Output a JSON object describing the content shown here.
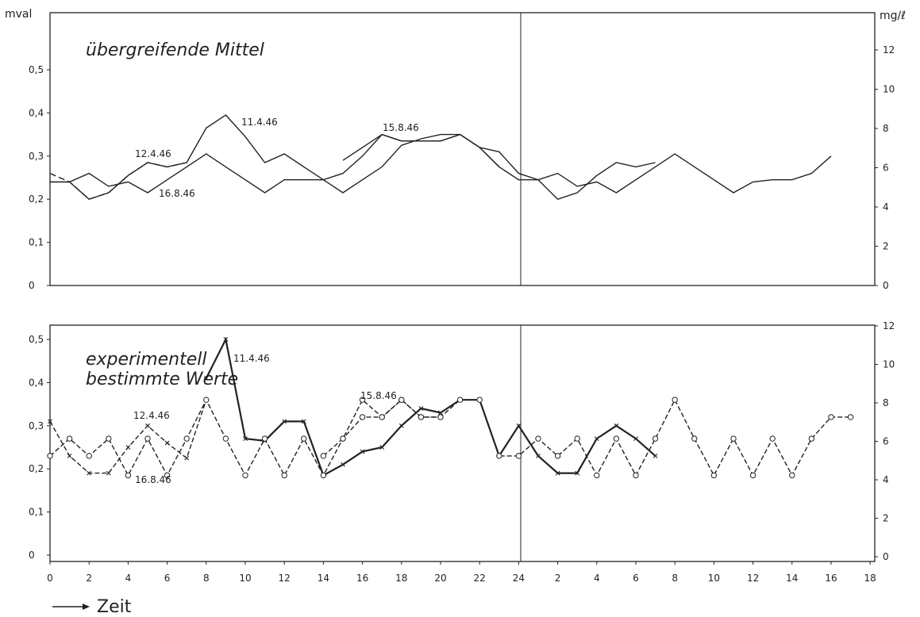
{
  "chart_data": [
    {
      "type": "line",
      "title": "übergreifende Mittel",
      "ylabel_left": "mval",
      "ylabel_right": "mg/ℓ",
      "ylim_left": [
        0,
        0.55
      ],
      "ylim_right": [
        0,
        13
      ],
      "left_ticks": [
        "0",
        "0,1",
        "0,2",
        "0,3",
        "0,4",
        "0,5"
      ],
      "right_ticks": [
        "0",
        "2",
        "4",
        "6",
        "8",
        "10",
        "12"
      ],
      "series": [
        {
          "name": "11.4.46",
          "x": [
            0,
            1,
            2,
            3,
            4,
            5,
            6,
            7,
            8,
            9,
            10,
            11,
            12,
            13,
            14,
            15,
            16,
            17,
            18,
            19,
            20,
            21,
            22,
            23,
            24,
            25,
            26,
            27,
            28,
            29,
            30,
            31
          ],
          "y": [
            0.24,
            0.24,
            0.2,
            0.215,
            0.255,
            0.285,
            0.275,
            0.285,
            0.365,
            0.395,
            0.345,
            0.285,
            0.305,
            0.275,
            0.245,
            0.215,
            0.245,
            0.275,
            0.325,
            0.34,
            0.35,
            0.35,
            0.32,
            0.31,
            0.26,
            0.245,
            0.2,
            0.215,
            0.255,
            0.285,
            0.275,
            0.285
          ]
        },
        {
          "name": "12.4.46",
          "x": [
            0,
            1,
            2,
            3,
            4,
            5,
            6,
            7
          ],
          "y": [
            0.26,
            0.24,
            0.2,
            0.215,
            0.255,
            0.285,
            0.275,
            0.285
          ]
        },
        {
          "name": "16.8.46",
          "x": [
            0,
            1,
            2,
            3,
            4,
            5,
            6,
            7,
            8,
            9,
            10,
            11,
            12,
            13,
            14,
            15,
            16,
            17,
            18,
            19,
            20,
            21,
            22,
            23,
            24,
            25,
            26,
            27,
            28,
            29,
            30,
            31,
            32,
            33,
            34,
            35,
            36,
            37,
            38,
            39,
            40
          ],
          "y": [
            0.24,
            0.24,
            0.26,
            0.23,
            0.24,
            0.215,
            0.245,
            0.275,
            0.305,
            0.275,
            0.245,
            0.215,
            0.245,
            0.245,
            0.245,
            0.26,
            0.3,
            0.35,
            0.335,
            0.335,
            0.335,
            0.35,
            0.32,
            0.275,
            0.245,
            0.245,
            0.26,
            0.23,
            0.24,
            0.215,
            0.245,
            0.275,
            0.305,
            0.275,
            0.245,
            0.215,
            0.24,
            0.245,
            0.245,
            0.26,
            0.3
          ]
        },
        {
          "name": "15.8.46",
          "x": [
            15,
            16,
            17,
            18,
            19,
            20,
            21,
            22,
            23
          ],
          "y": [
            0.29,
            0.32,
            0.35,
            0.335,
            0.335,
            0.335,
            0.35,
            0.32,
            0.275
          ]
        }
      ]
    },
    {
      "type": "line",
      "title": "experimentell bestimmte Werte",
      "ylabel_left": "",
      "ylabel_right": "",
      "ylim_left": [
        0,
        0.55
      ],
      "ylim_right": [
        0,
        12
      ],
      "left_ticks": [
        "0",
        "0,1",
        "0,2",
        "0,3",
        "0,4",
        "0,5"
      ],
      "right_ticks": [
        "0",
        "2",
        "4",
        "6",
        "8",
        "10",
        "12"
      ],
      "series": [
        {
          "name": "11.4.46",
          "marker": "x",
          "x": [
            8,
            9,
            10,
            11,
            12,
            13,
            14,
            15,
            16,
            17,
            18,
            19,
            20,
            21,
            22,
            23,
            24,
            25,
            26,
            27,
            28,
            29,
            30,
            31
          ],
          "y": [
            0.41,
            0.5,
            0.27,
            0.265,
            0.31,
            0.31,
            0.185,
            0.21,
            0.24,
            0.25,
            0.3,
            0.34,
            0.33,
            0.36,
            0.36,
            0.23,
            0.3,
            0.23,
            0.19,
            0.19,
            0.27,
            0.3,
            0.27,
            0.23
          ]
        },
        {
          "name": "12.4.46",
          "marker": "x",
          "x": [
            0,
            1,
            2,
            3,
            4,
            5,
            6,
            7,
            8
          ],
          "y": [
            0.31,
            0.23,
            0.19,
            0.19,
            0.25,
            0.3,
            0.26,
            0.225,
            0.36
          ]
        },
        {
          "name": "16.8.46",
          "marker": "o",
          "x": [
            0,
            1,
            2,
            3,
            4,
            5,
            6,
            7,
            8,
            9,
            10,
            11,
            12,
            13,
            14,
            15,
            16,
            17,
            18,
            19,
            20,
            21,
            22,
            23,
            24,
            25,
            26,
            27,
            28,
            29,
            30,
            31,
            32,
            33,
            34,
            35,
            36,
            37,
            38,
            39,
            40,
            41
          ],
          "y": [
            0.23,
            0.27,
            0.23,
            0.27,
            0.185,
            0.27,
            0.185,
            0.27,
            0.36,
            0.27,
            0.185,
            0.27,
            0.185,
            0.27,
            0.185,
            0.27,
            0.32,
            0.32,
            0.36,
            0.32,
            0.32,
            0.36,
            0.36,
            0.23,
            0.23,
            0.27,
            0.23,
            0.27,
            0.185,
            0.27,
            0.185,
            0.27,
            0.36,
            0.27,
            0.185,
            0.27,
            0.185,
            0.27,
            0.185,
            0.27,
            0.32,
            0.32
          ]
        },
        {
          "name": "15.8.46",
          "marker": "o",
          "x": [
            14,
            15,
            16,
            17,
            18,
            19,
            20
          ],
          "y": [
            0.23,
            0.27,
            0.36,
            0.32,
            0.36,
            0.32,
            0.32
          ]
        }
      ]
    }
  ],
  "x_axis": {
    "ticks": [
      "0",
      "2",
      "4",
      "6",
      "8",
      "10",
      "12",
      "14",
      "16",
      "18",
      "20",
      "22",
      "24",
      "2",
      "4",
      "6",
      "8",
      "10",
      "12",
      "14",
      "16",
      "18"
    ],
    "label": "Zeit",
    "arrow": "→"
  },
  "annotations": {
    "top": {
      "a": "11.4.46",
      "b": "12.4.46",
      "c": "16.8.46",
      "d": "15.8.46"
    },
    "bottom": {
      "a": "11.4.46",
      "b": "12.4.46",
      "c": "16.8.46",
      "d": "15.8.46"
    }
  },
  "colors": {
    "ink": "#222222",
    "paper": "#ffffff"
  }
}
